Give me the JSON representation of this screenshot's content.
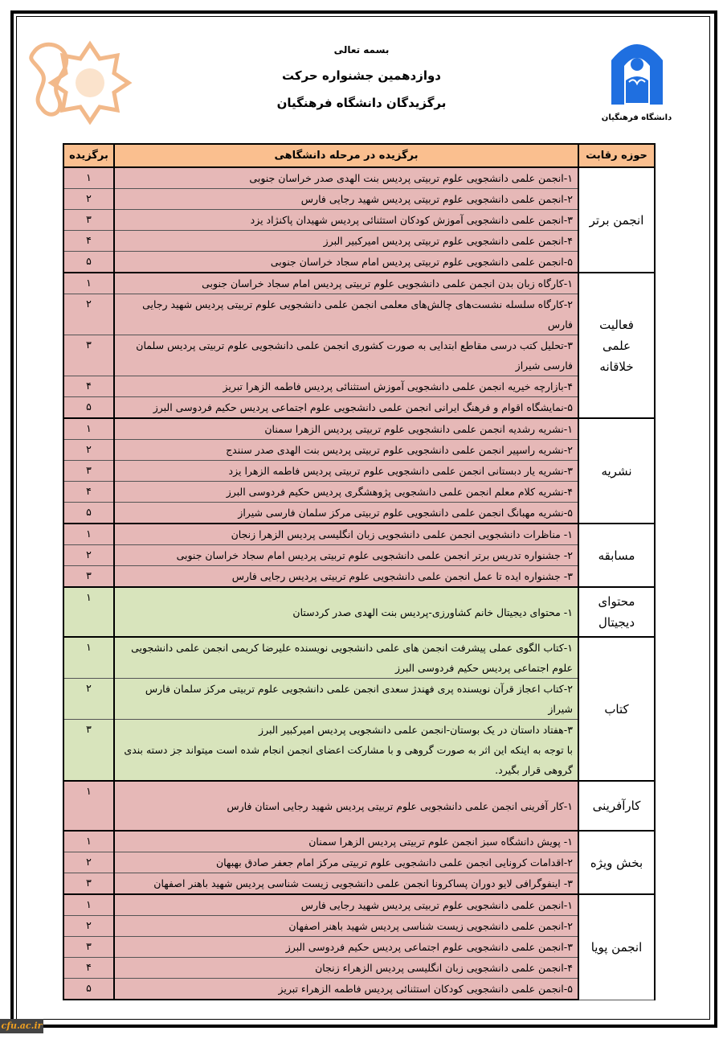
{
  "header": {
    "bismillah": "بسمه تعالی",
    "festival_title": "دوازدهمین جشنواره حرکت",
    "subtitle": "برگزیدگان دانشگاه فرهنگیان",
    "logo_caption": "دانشگاه فرهنگیان"
  },
  "colors": {
    "header": "#fabf8f",
    "pink": "#e6b8b7",
    "green": "#d8e4bc",
    "logo_blue": "#1f6fe0",
    "ornament": "#f2b98a"
  },
  "table": {
    "headers": {
      "category": "حوزه رقابت",
      "winner": "برگزیده در مرحله دانشگاهی",
      "rank": "برگزیده"
    },
    "sections": [
      {
        "category": "انجمن برتر",
        "color": "pink",
        "rows": [
          {
            "rank": "۱",
            "text": "۱-انجمن علمی دانشجویی علوم تربیتی پردیس بنت الهدی صدر خراسان جنوبی"
          },
          {
            "rank": "۲",
            "text": "۲-انجمن علمی دانشجویی علوم تربیتی پردیس شهید رجایی فارس"
          },
          {
            "rank": "۳",
            "text": "۳-انجمن علمی دانشجویی آموزش کودکان استثنائی پردیس شهیدان پاکنژاد یزد"
          },
          {
            "rank": "۴",
            "text": "۴-انجمن علمی دانشجویی علوم تربیتی پردیس امیرکبیر البرز"
          },
          {
            "rank": "۵",
            "text": "۵-انجمن علمی دانشجویی علوم تربیتی پردیس امام سجاد خراسان جنوبی"
          }
        ]
      },
      {
        "category": "فعالیت علمی خلاقانه",
        "color": "pink",
        "rows": [
          {
            "rank": "۱",
            "text": "۱-کارگاه زبان بدن انجمن علمی دانشجویی علوم تربیتی پردیس امام سجاد خراسان جنوبی"
          },
          {
            "rank": "۲",
            "text": "۲-کارگاه سلسله نشست‌های چالش‌های معلمی انجمن علمی دانشجویی علوم تربیتی پردیس شهید رجایی فارس"
          },
          {
            "rank": "۳",
            "text": "۳-تحلیل کتب درسی مقاطع ابتدایی به صورت کشوری انجمن علمی دانشجویی علوم تربیتی پردیس سلمان فارسی شیراز"
          },
          {
            "rank": "۴",
            "text": "۴-بازارچه خیریه انجمن علمی دانشجویی آموزش استثنائی پردیس فاطمه الزهرا تبریز"
          },
          {
            "rank": "۵",
            "text": "۵-نمایشگاه اقوام و فرهنگ ایرانی انجمن علمی دانشجویی علوم اجتماعی پردیس حکیم فردوسی البرز"
          }
        ]
      },
      {
        "category": "نشریه",
        "color": "pink",
        "rows": [
          {
            "rank": "۱",
            "text": "۱-نشریه رشدیه انجمن علمی دانشجویی علوم تربیتی پردیس الزهرا سمنان"
          },
          {
            "rank": "۲",
            "text": "۲-نشریه راسپیر انجمن علمی دانشجویی علوم تربیتی پردیس بنت الهدی صدر سنندج"
          },
          {
            "rank": "۳",
            "text": "۳-نشریه یار دبستانی انجمن علمی دانشجویی علوم تربیتی پردیس فاطمه الزهرا یزد"
          },
          {
            "rank": "۴",
            "text": "۴-نشریه کلام معلم انجمن علمی دانشجویی پژوهشگری پردیس حکیم فردوسی البرز"
          },
          {
            "rank": "۵",
            "text": "۵-نشریه مهبانگ انجمن علمی دانشجویی علوم تربیتی مرکز سلمان فارسی شیراز"
          }
        ]
      },
      {
        "category": "مسابقه",
        "color": "pink",
        "rows": [
          {
            "rank": "۱",
            "text": "۱- مناظرات دانشجویی انجمن علمی دانشجویی زبان انگلیسی پردیس الزهرا زنجان"
          },
          {
            "rank": "۲",
            "text": "۲- جشنواره تدریس برتر انجمن علمی دانشجویی علوم تربیتی پردیس امام سجاد خراسان جنوبی"
          },
          {
            "rank": "۳",
            "text": "۳- جشنواره ایده تا عمل انجمن علمی دانشجویی علوم تربیتی پردیس رجایی فارس"
          }
        ]
      },
      {
        "category": "محتوای دیجیتال",
        "color": "green",
        "rows": [
          {
            "rank": "۱",
            "text": "۱- محتوای دیجیتال خانم کشاورزی-پردیس بنت الهدی صدر کردستان"
          }
        ]
      },
      {
        "category": "کتاب",
        "color": "green",
        "rows": [
          {
            "rank": "۱",
            "text": "۱-کتاب الگوی عملی پیشرفت انجمن های علمی دانشجویی نویسنده علیرضا کریمی انجمن علمی دانشجویی علوم اجتماعی پردیس حکیم فردوسی البرز"
          },
          {
            "rank": "۲",
            "text": "۲-کتاب اعجاز قرآن نویسنده پری فهندژ سعدی انجمن علمی دانشجویی علوم تربیتی مرکز سلمان فارس شیراز"
          },
          {
            "rank": "۳",
            "text": "۳-هفتاد داستان در یک بوستان-انجمن علمی دانشجویی پردیس امیرکبیر البرز",
            "note": "با توجه به اینکه این اثر به صورت گروهی و با مشارکت اعضای انجمن انجام شده است میتواند جز دسته بندی گروهی قرار بگیرد."
          }
        ]
      },
      {
        "category": "کارآفرینی",
        "color": "pink",
        "rows": [
          {
            "rank": "۱",
            "text": "۱-کار آفرینی انجمن علمی دانشجویی علوم تربیتی پردیس شهید رجایی استان فارس"
          }
        ]
      },
      {
        "category": "بخش ویژه",
        "color": "pink",
        "rows": [
          {
            "rank": "۱",
            "text": "۱- پویش دانشگاه سبز انجمن علوم تربیتی پردیس الزهرا سمنان"
          },
          {
            "rank": "۲",
            "text": "۲-اقدامات کرونایی انجمن علمی دانشجویی علوم تربیتی مرکز امام جعفر صادق بهبهان"
          },
          {
            "rank": "۳",
            "text": "۳- اینفوگرافی لایو دوران پساکرونا انجمن علمی دانشجویی زیست شناسی پردیس شهید باهنر اصفهان"
          }
        ]
      },
      {
        "category": "انجمن پویا",
        "color": "pink",
        "rows": [
          {
            "rank": "۱",
            "text": "۱-انجمن علمی دانشجویی علوم تربیتی پردیس شهید رجایی فارس"
          },
          {
            "rank": "۲",
            "text": "۲-انجمن علمی دانشجویی زیست شناسی پردیس شهید باهنر اصفهان"
          },
          {
            "rank": "۳",
            "text": "۳-انجمن علمی دانشجویی علوم اجتماعی پردیس حکیم فردوسی البرز"
          },
          {
            "rank": "۴",
            "text": "۴-انجمن علمی دانشجویی زبان انگلیسی پردیس الزهراء زنجان"
          },
          {
            "rank": "۵",
            "text": "۵-انجمن علمی دانشجویی کودکان استثنائی پردیس فاطمه الزهراء تبریز"
          }
        ]
      }
    ]
  },
  "watermark": "cfu.ac.ir"
}
